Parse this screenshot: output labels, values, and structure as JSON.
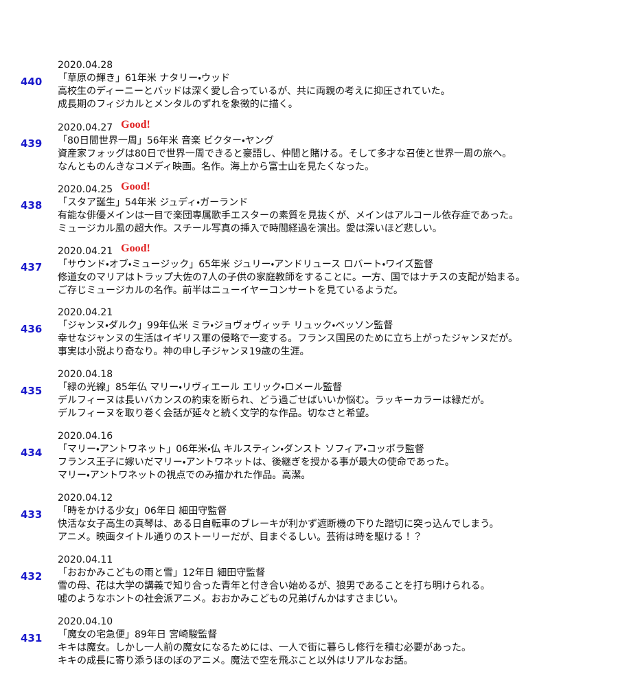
{
  "entries": [
    {
      "number": "440",
      "date": "2020.04.28",
      "title": "「草原の輝き」61年米 ナタリー・ウッド",
      "lines": [
        "高校生のディーニーとバッドは深く愛し合っているが、共に両親の考えに抑圧されていた。",
        "成長期のフィジカルとメンタルのずれを象徴的に描く。"
      ]
    },
    {
      "number": "439",
      "date": "2020.04.27",
      "badge": "Good!",
      "title": "「80日間世界一周」56年米 音楽 ビクター・ヤング",
      "lines": [
        "資産家フォッグは80日で世界一周できると豪語し、仲間と賭ける。そして多才な召使と世界一周の旅へ。",
        "なんとものんきなコメディ映画。名作。海上から富士山を見たくなった。"
      ]
    },
    {
      "number": "438",
      "date": "2020.04.25",
      "badge": "Good!",
      "title": "「スタア誕生」54年米 ジュディ・ガーランド",
      "lines": [
        "有能な俳優メインは一目で楽団専属歌手エスターの素質を見抜くが、メインはアルコール依存症であった。",
        "ミュージカル風の超大作。スチール写真の挿入で時間経過を演出。愛は深いほど悲しい。"
      ]
    },
    {
      "number": "437",
      "date": "2020.04.21",
      "badge": "Good!",
      "title": "「サウンド・オブ・ミュージック」65年米 ジュリー・アンドリュース ロバート・ワイズ監督",
      "lines": [
        "修道女のマリアはトラップ大佐の7人の子供の家庭教師をすることに。一方、国ではナチスの支配が始まる。",
        "ご存じミュージカルの名作。前半はニューイヤーコンサートを見ているようだ。"
      ]
    },
    {
      "number": "436",
      "date": "2020.04.21",
      "title": "「ジャンヌ・ダルク」99年仏米 ミラ・ジョヴォヴィッチ リュック・ベッソン監督",
      "lines": [
        "幸せなジャンヌの生活はイギリス軍の侵略で一変する。フランス国民のために立ち上がったジャンヌだが。",
        "事実は小説より奇なり。神の申し子ジャンヌ19歳の生涯。"
      ]
    },
    {
      "number": "435",
      "date": "2020.04.18",
      "title": "「緑の光線」85年仏 マリー・リヴィエール エリック・ロメール監督",
      "lines": [
        "デルフィーヌは長いバカンスの約束を断られ、どう過ごせばいいか悩む。ラッキーカラーは緑だが。",
        "デルフィーヌを取り巻く会話が延々と続く文学的な作品。切なさと希望。"
      ]
    },
    {
      "number": "434",
      "date": "2020.04.16",
      "title": "「マリー・アントワネット」06年米・仏 キルスティン・ダンスト ソフィア・コッポラ監督",
      "lines": [
        "フランス王子に嫁いだマリー・アントワネットは、後継ぎを授かる事が最大の使命であった。",
        "マリー・アントワネットの視点でのみ描かれた作品。高潔。"
      ]
    },
    {
      "number": "433",
      "date": "2020.04.12",
      "title": "「時をかける少女」06年日 細田守監督",
      "lines": [
        "快活な女子高生の真琴は、ある日自転車のブレーキが利かず遮断機の下りた踏切に突っ込んでしまう。",
        "アニメ。映画タイトル通りのストーリーだが、目まぐるしい。芸術は時を駆ける！？"
      ]
    },
    {
      "number": "432",
      "date": "2020.04.11",
      "title": "「おおかみこどもの雨と雪」12年日 細田守監督",
      "lines": [
        "雪の母、花は大学の講義で知り合った青年と付き合い始めるが、狼男であることを打ち明けられる。",
        "嘘のようなホントの社会派アニメ。おおかみこどもの兄弟げんかはすさまじい。"
      ]
    },
    {
      "number": "431",
      "date": "2020.04.10",
      "title": "「魔女の宅急便」89年日 宮崎駿監督",
      "lines": [
        "キキは魔女。しかし一人前の魔女になるためには、一人で街に暮らし修行を積む必要があった。",
        "キキの成長に寄り添うほのぼのアニメ。魔法で空を飛ぶこと以外はリアルなお話。"
      ]
    }
  ]
}
